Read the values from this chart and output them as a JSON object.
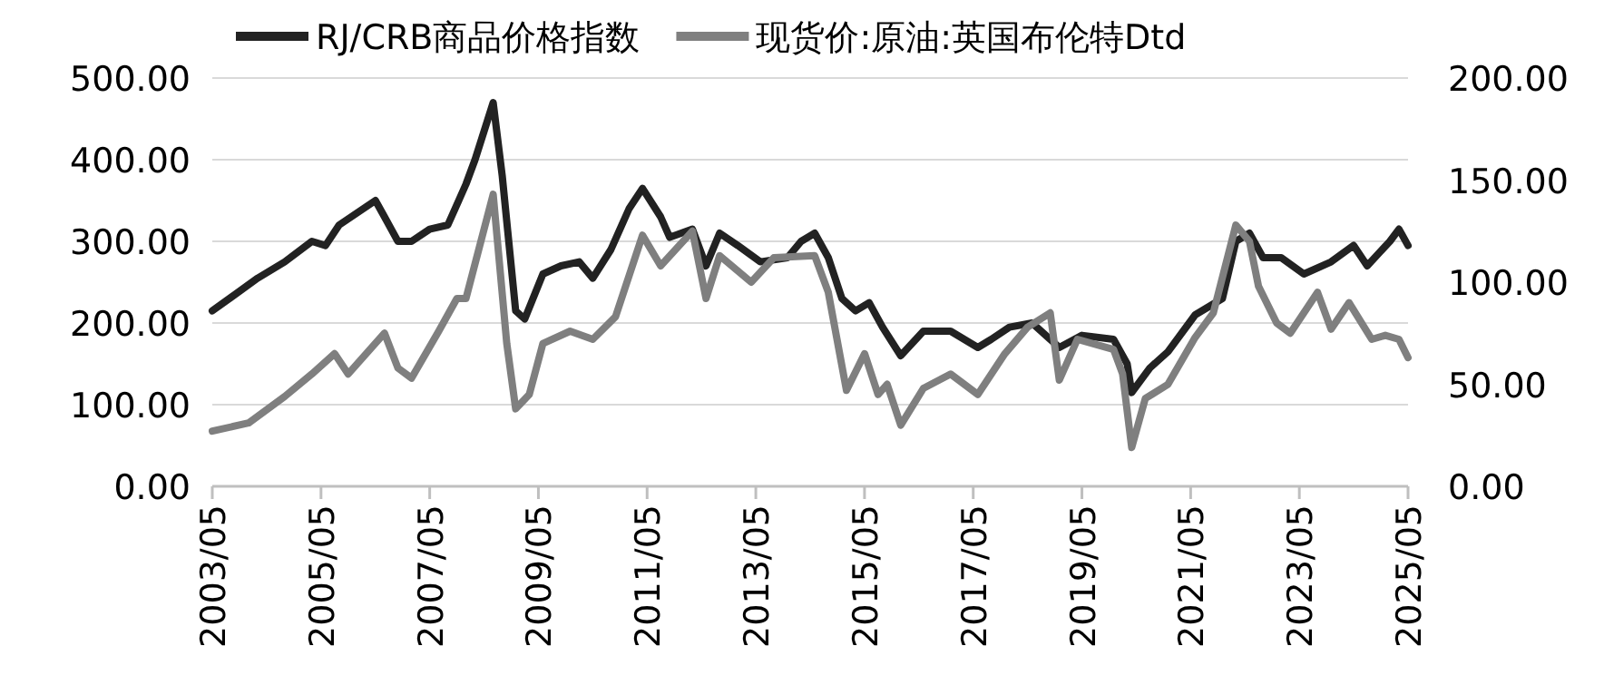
{
  "chart_data": {
    "type": "line",
    "legend": "top",
    "grid": "y",
    "line_style": "solid",
    "xlim": [
      "2003-05",
      "2025-05"
    ],
    "xticks": [
      {
        "value": "2003-05",
        "label": "2003/05"
      },
      {
        "value": "2005-05",
        "label": "2005/05"
      },
      {
        "value": "2007-05",
        "label": "2007/05"
      },
      {
        "value": "2009-05",
        "label": "2009/05"
      },
      {
        "value": "2011-05",
        "label": "2011/05"
      },
      {
        "value": "2013-05",
        "label": "2013/05"
      },
      {
        "value": "2015-05",
        "label": "2015/05"
      },
      {
        "value": "2017-05",
        "label": "2017/05"
      },
      {
        "value": "2019-05",
        "label": "2019/05"
      },
      {
        "value": "2021-05",
        "label": "2021/05"
      },
      {
        "value": "2023-05",
        "label": "2023/05"
      },
      {
        "value": "2025-05",
        "label": "2025/05"
      }
    ],
    "ylim": [
      0,
      500
    ],
    "yticks": [
      {
        "value": 0,
        "label": "0.00"
      },
      {
        "value": 100,
        "label": "100.00"
      },
      {
        "value": 200,
        "label": "200.00"
      },
      {
        "value": 300,
        "label": "300.00"
      },
      {
        "value": 400,
        "label": "400.00"
      },
      {
        "value": 500,
        "label": "500.00"
      }
    ],
    "y2lim": [
      0,
      200
    ],
    "y2ticks": [
      {
        "value": 0,
        "label": "0.00"
      },
      {
        "value": 50,
        "label": "50.00"
      },
      {
        "value": 100,
        "label": "100.00"
      },
      {
        "value": 150,
        "label": "150.00"
      },
      {
        "value": 200,
        "label": "200.00"
      }
    ],
    "series": [
      {
        "name": "RJ/CRB商品价格指数",
        "color": "#222222",
        "x": [
          "2003-05",
          "2004-03",
          "2004-09",
          "2005-03",
          "2005-06",
          "2005-09",
          "2006-05",
          "2006-07",
          "2006-10",
          "2007-01",
          "2007-05",
          "2007-09",
          "2008-01",
          "2008-03",
          "2008-07",
          "2008-09",
          "2008-12",
          "2009-02",
          "2009-06",
          "2009-10",
          "2010-02",
          "2010-05",
          "2010-09",
          "2011-01",
          "2011-04",
          "2011-08",
          "2011-10",
          "2012-03",
          "2012-06",
          "2012-09",
          "2013-01",
          "2013-06",
          "2013-12",
          "2014-03",
          "2014-06",
          "2014-09",
          "2014-12",
          "2015-03",
          "2015-06",
          "2015-09",
          "2016-01",
          "2016-06",
          "2016-12",
          "2017-06",
          "2017-09",
          "2018-01",
          "2018-06",
          "2018-12",
          "2019-05",
          "2019-12",
          "2020-03",
          "2020-04",
          "2020-08",
          "2020-12",
          "2021-06",
          "2021-12",
          "2022-03",
          "2022-06",
          "2022-09",
          "2023-01",
          "2023-06",
          "2023-12",
          "2024-05",
          "2024-08",
          "2025-01",
          "2025-03",
          "2025-05"
        ],
        "values": [
          215,
          255,
          275,
          300,
          295,
          320,
          350,
          330,
          300,
          300,
          315,
          320,
          370,
          400,
          470,
          380,
          215,
          205,
          260,
          270,
          275,
          255,
          290,
          340,
          365,
          330,
          305,
          315,
          270,
          310,
          295,
          275,
          280,
          300,
          310,
          280,
          230,
          215,
          225,
          195,
          160,
          190,
          190,
          170,
          180,
          195,
          200,
          170,
          185,
          180,
          150,
          115,
          145,
          165,
          210,
          230,
          300,
          310,
          280,
          280,
          260,
          275,
          295,
          270,
          300,
          315,
          295
        ]
      },
      {
        "name": "现货价:原油:英国布伦特Dtd",
        "color": "#7f7f7f",
        "axis": "y2",
        "x": [
          "2003-05",
          "2004-01",
          "2004-09",
          "2005-03",
          "2005-08",
          "2005-11",
          "2006-07",
          "2006-10",
          "2007-01",
          "2007-07",
          "2007-11",
          "2008-01",
          "2008-07",
          "2008-10",
          "2008-12",
          "2009-03",
          "2009-06",
          "2009-12",
          "2010-05",
          "2010-10",
          "2011-04",
          "2011-08",
          "2012-03",
          "2012-06",
          "2012-09",
          "2013-04",
          "2013-09",
          "2014-06",
          "2014-09",
          "2015-01",
          "2015-05",
          "2015-08",
          "2015-10",
          "2016-01",
          "2016-06",
          "2016-12",
          "2017-06",
          "2017-12",
          "2018-05",
          "2018-10",
          "2018-12",
          "2019-04",
          "2019-12",
          "2020-02",
          "2020-04",
          "2020-07",
          "2020-12",
          "2021-06",
          "2021-10",
          "2022-03",
          "2022-06",
          "2022-08",
          "2022-12",
          "2023-03",
          "2023-09",
          "2023-12",
          "2024-04",
          "2024-09",
          "2024-12",
          "2025-03",
          "2025-05"
        ],
        "values": [
          27,
          31,
          44,
          55,
          65,
          55,
          75,
          58,
          53,
          76,
          92,
          92,
          143,
          70,
          38,
          45,
          70,
          76,
          72,
          83,
          123,
          108,
          125,
          92,
          113,
          100,
          112,
          113,
          95,
          47,
          65,
          45,
          50,
          30,
          48,
          55,
          45,
          65,
          78,
          85,
          52,
          72,
          67,
          55,
          19,
          43,
          50,
          73,
          85,
          128,
          120,
          98,
          80,
          75,
          95,
          77,
          90,
          72,
          74,
          72,
          63
        ]
      }
    ]
  }
}
